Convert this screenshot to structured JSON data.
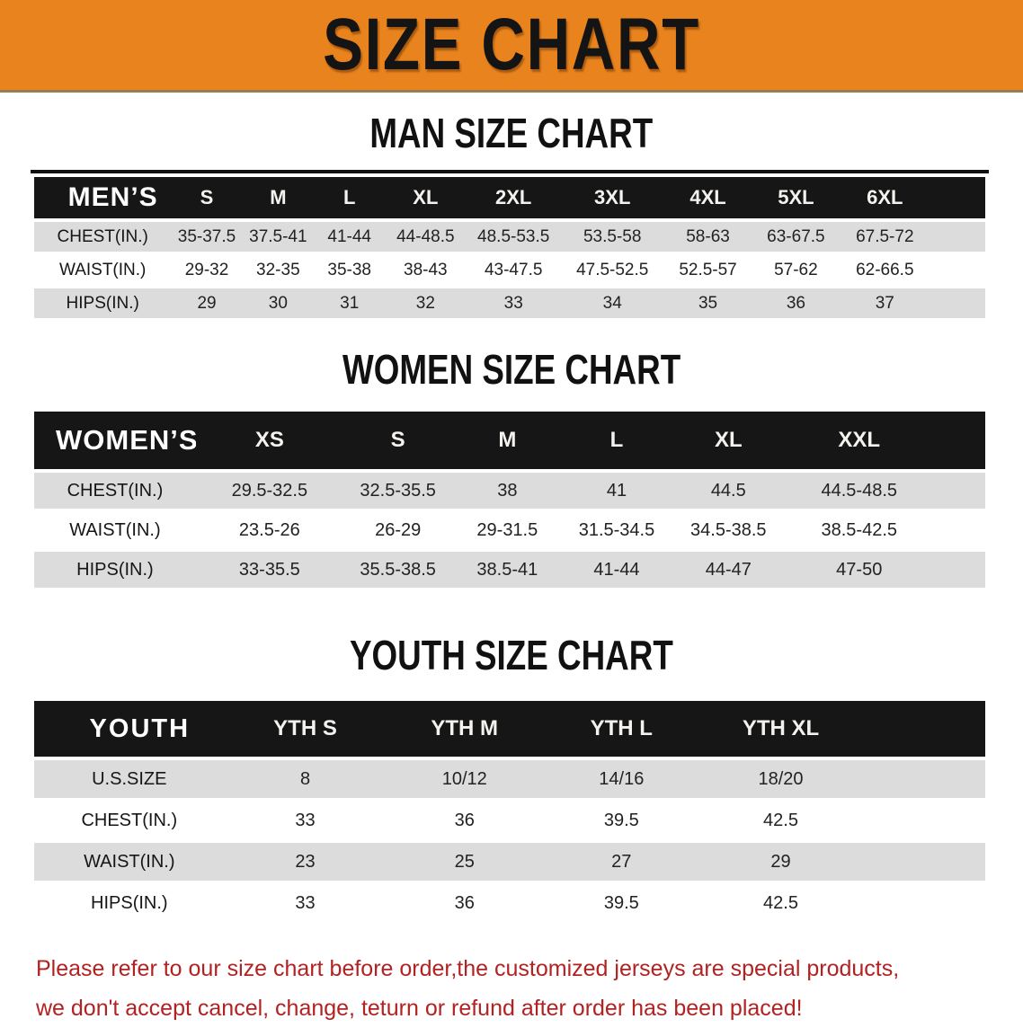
{
  "banner": {
    "title": "SIZE CHART"
  },
  "men": {
    "heading": "MAN SIZE CHART",
    "table": {
      "header": [
        "MEN’S",
        "S",
        "M",
        "L",
        "XL",
        "2XL",
        "3XL",
        "4XL",
        "5XL",
        "6XL"
      ],
      "rows": [
        {
          "label": "CHEST(IN.)",
          "values": [
            "35-37.5",
            "37.5-41",
            "41-44",
            "44-48.5",
            "48.5-53.5",
            "53.5-58",
            "58-63",
            "63-67.5",
            "67.5-72"
          ]
        },
        {
          "label": "WAIST(IN.)",
          "values": [
            "29-32",
            "32-35",
            "35-38",
            "38-43",
            "43-47.5",
            "47.5-52.5",
            "52.5-57",
            "57-62",
            "62-66.5"
          ]
        },
        {
          "label": "HIPS(IN.)",
          "values": [
            "29",
            "30",
            "31",
            "32",
            "33",
            "34",
            "35",
            "36",
            "37"
          ]
        }
      ]
    }
  },
  "women": {
    "heading": "WOMEN SIZE CHART",
    "table": {
      "header": [
        "WOMEN’S",
        "XS",
        "S",
        "M",
        "L",
        "XL",
        "XXL"
      ],
      "rows": [
        {
          "label": "CHEST(IN.)",
          "values": [
            "29.5-32.5",
            "32.5-35.5",
            "38",
            "41",
            "44.5",
            "44.5-48.5"
          ]
        },
        {
          "label": "WAIST(IN.)",
          "values": [
            "23.5-26",
            "26-29",
            "29-31.5",
            "31.5-34.5",
            "34.5-38.5",
            "38.5-42.5"
          ]
        },
        {
          "label": "HIPS(IN.)",
          "values": [
            "33-35.5",
            "35.5-38.5",
            "38.5-41",
            "41-44",
            "44-47",
            "47-50"
          ]
        }
      ]
    }
  },
  "youth": {
    "heading": "YOUTH SIZE CHART",
    "table": {
      "header": [
        "YOUTH",
        "YTH S",
        "YTH M",
        "YTH L",
        "YTH XL"
      ],
      "rows": [
        {
          "label": "U.S.SIZE",
          "values": [
            "8",
            "10/12",
            "14/16",
            "18/20"
          ]
        },
        {
          "label": "CHEST(IN.)",
          "values": [
            "33",
            "36",
            "39.5",
            "42.5"
          ]
        },
        {
          "label": "WAIST(IN.)",
          "values": [
            "23",
            "25",
            "27",
            "29"
          ]
        },
        {
          "label": "HIPS(IN.)",
          "values": [
            "33",
            "36",
            "39.5",
            "42.5"
          ]
        }
      ]
    }
  },
  "disclaimer": {
    "line1": "Please refer to our size chart before order,the customized jerseys are special products,",
    "line2": "we don't accept cancel, change, teturn or refund after order has been placed!"
  },
  "colors": {
    "banner_orange": "#E8831D",
    "table_header_bg": "#161616",
    "row_stripe_gray": "#DCDCDC",
    "disclaimer_red": "#B22222"
  }
}
